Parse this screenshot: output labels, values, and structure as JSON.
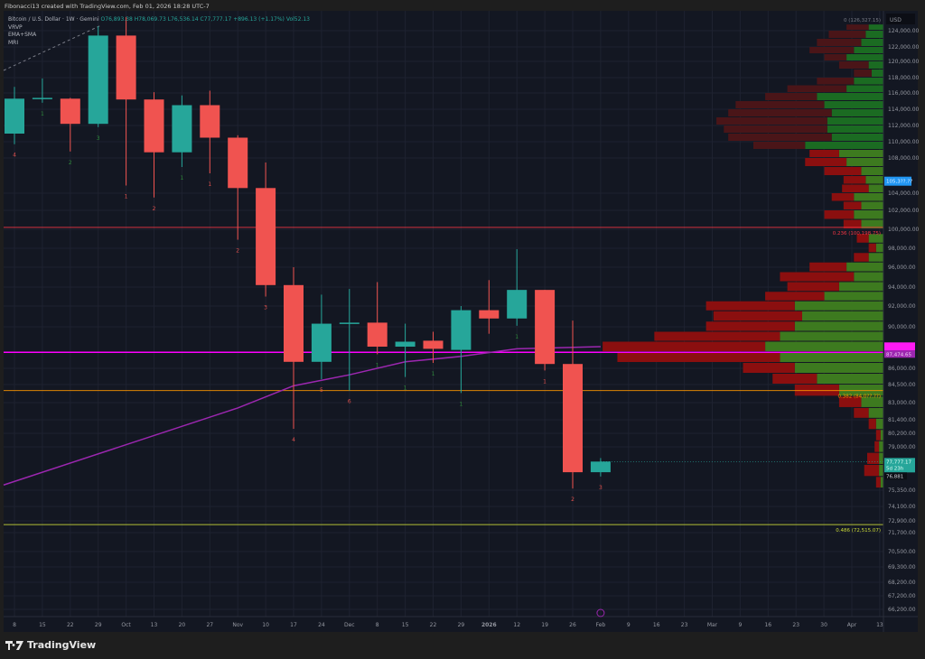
{
  "credit": "Fibonacci13 created with TradingView.com, Feb 01, 2026 18:28 UTC-7",
  "legend": {
    "symbol": "Bitcoin / U.S. Dollar · 1W · Gemini",
    "open": "O76,893.38",
    "high": "H78,069.73",
    "low": "L76,536.14",
    "close": "C77,777.17",
    "change": "+896.13 (+1.17%)",
    "volume": "Vol52.13",
    "indicators": [
      "VRVP",
      "EMA+SMA",
      "MRI"
    ]
  },
  "price_axis": {
    "currency": "USD",
    "labels": [
      "124,000.00",
      "122,000.00",
      "120,000.00",
      "118,000.00",
      "116,000.00",
      "114,000.00",
      "112,000.00",
      "110,000.00",
      "108,000.00",
      "104,000.00",
      "102,000.00",
      "100,000.00",
      "98,000.00",
      "96,000.00",
      "94,000.00",
      "92,000.00",
      "90,000.00",
      "86,000.00",
      "84,500.00",
      "83,000.00",
      "81,400.00",
      "80,200.00",
      "79,000.00",
      "75,350.00",
      "74,100.00",
      "72,900.00",
      "71,700.00",
      "70,500.00",
      "69,300.00",
      "68,200.00",
      "67,200.00",
      "66,200.00"
    ],
    "badges": {
      "blue": "105,3??.??",
      "magenta_top": "",
      "magenta": "87,474.65",
      "current_price": "77,777.17",
      "countdown": "5d 23h",
      "low_mark": "76,881"
    }
  },
  "time_axis": [
    "8",
    "15",
    "22",
    "29",
    "Oct",
    "13",
    "20",
    "27",
    "Nov",
    "10",
    "17",
    "24",
    "Dec",
    "8",
    "15",
    "22",
    "29",
    "2026",
    "12",
    "19",
    "26",
    "Feb",
    "9",
    "16",
    "23",
    "Mar",
    "9",
    "16",
    "23",
    "30",
    "Apr",
    "13"
  ],
  "fib_levels": [
    {
      "label": "0 (126,327.15)",
      "price": 126327.15,
      "color": "#787b86"
    },
    {
      "label": "0.236 (100,198.75)",
      "price": 100198.75,
      "color": "#f23645"
    },
    {
      "label": "0.382 (84,0??.??)",
      "price": 84000,
      "color": "#ff9800"
    },
    {
      "label": "0.486 (72,515.07)",
      "price": 72515.07,
      "color": "#cddc39"
    }
  ],
  "colors": {
    "up": "#26a69a",
    "down": "#f05350",
    "ema": "#9c27b0",
    "poc": "#ff00ff",
    "background": "#131722"
  },
  "chart_data": {
    "type": "candlestick",
    "timeframe": "1W",
    "weeks": [
      "2025-09-08",
      "2025-09-15",
      "2025-09-22",
      "2025-09-29",
      "2025-10-06",
      "2025-10-13",
      "2025-10-20",
      "2025-10-27",
      "2025-11-03",
      "2025-11-10",
      "2025-11-17",
      "2025-11-24",
      "2025-12-01",
      "2025-12-08",
      "2025-12-15",
      "2025-12-22",
      "2025-12-29",
      "2026-01-05",
      "2026-01-12",
      "2026-01-19",
      "2026-01-26",
      "2026-02-02"
    ],
    "ohlc": [
      [
        111000,
        116800,
        109700,
        115300
      ],
      [
        115300,
        117900,
        114800,
        115400
      ],
      [
        115300,
        115400,
        108800,
        112200
      ],
      [
        112200,
        124700,
        111800,
        123400
      ],
      [
        123400,
        126200,
        104900,
        115200
      ],
      [
        115200,
        116100,
        103500,
        108700
      ],
      [
        108700,
        115700,
        107000,
        114500
      ],
      [
        114500,
        116300,
        106300,
        110500
      ],
      [
        110500,
        110800,
        98900,
        104600
      ],
      [
        104600,
        107500,
        93000,
        94200
      ],
      [
        94200,
        96000,
        80600,
        86600
      ],
      [
        86600,
        93200,
        85000,
        90300
      ],
      [
        90300,
        93800,
        84000,
        90400
      ],
      [
        90400,
        94500,
        87300,
        88000
      ],
      [
        88000,
        90300,
        85200,
        88500
      ],
      [
        88600,
        89500,
        86500,
        87800
      ],
      [
        87700,
        92000,
        83800,
        91600
      ],
      [
        91600,
        94700,
        89300,
        90800
      ],
      [
        90800,
        97900,
        90100,
        93700
      ],
      [
        93700,
        93700,
        85800,
        86400
      ],
      [
        86400,
        90600,
        75500,
        76893
      ],
      [
        76893.38,
        78069.73,
        76536.14,
        77777.17
      ]
    ],
    "mri_counts": [
      {
        "v": "4",
        "up": false
      },
      {
        "v": "1",
        "up": true
      },
      {
        "v": "2",
        "up": true
      },
      {
        "v": "3",
        "up": true
      },
      {
        "v": "1",
        "up": false
      },
      {
        "v": "2",
        "up": false
      },
      {
        "v": "1",
        "up": true
      },
      {
        "v": "1",
        "up": false
      },
      {
        "v": "2",
        "up": false
      },
      {
        "v": "3",
        "up": false
      },
      {
        "v": "4",
        "up": false
      },
      {
        "v": "5",
        "up": false
      },
      {
        "v": "6",
        "up": false
      },
      {
        "v": "1",
        "up": true
      },
      {
        "v": "1",
        "up": true
      },
      {
        "v": "1",
        "up": true
      },
      {
        "v": "1",
        "up": true
      },
      {
        "v": "",
        "up": true
      },
      {
        "v": "1",
        "up": true
      },
      {
        "v": "1",
        "up": false
      },
      {
        "v": "2",
        "up": false
      },
      {
        "v": "3",
        "up": false
      }
    ],
    "ema_line": [
      [
        0,
        75800
      ],
      [
        8,
        82500
      ],
      [
        10,
        84400
      ],
      [
        12,
        85400
      ],
      [
        14,
        86600
      ],
      [
        16,
        87100
      ],
      [
        18,
        87800
      ],
      [
        21,
        88000
      ]
    ],
    "poc_price": 87474.65,
    "volume_profile_rows": [
      [
        124500,
        10,
        15
      ],
      [
        123500,
        12,
        25
      ],
      [
        122500,
        15,
        30
      ],
      [
        121500,
        20,
        30
      ],
      [
        120500,
        25,
        15
      ],
      [
        119500,
        10,
        20
      ],
      [
        118500,
        8,
        12
      ],
      [
        117500,
        20,
        25
      ],
      [
        116500,
        25,
        40
      ],
      [
        115500,
        45,
        35
      ],
      [
        114500,
        40,
        60
      ],
      [
        113500,
        35,
        70
      ],
      [
        112500,
        38,
        75
      ],
      [
        111500,
        38,
        70
      ],
      [
        110500,
        35,
        70
      ],
      [
        109500,
        53,
        35
      ],
      [
        108500,
        30,
        20
      ],
      [
        107500,
        25,
        28
      ],
      [
        106500,
        15,
        25
      ],
      [
        105500,
        12,
        15
      ],
      [
        104500,
        10,
        18
      ],
      [
        103500,
        20,
        15
      ],
      [
        102500,
        15,
        12
      ],
      [
        101500,
        20,
        20
      ],
      [
        100500,
        15,
        12
      ],
      [
        99000,
        10,
        8
      ],
      [
        98000,
        5,
        5
      ],
      [
        97000,
        10,
        10
      ],
      [
        96000,
        25,
        25
      ],
      [
        95000,
        20,
        50
      ],
      [
        94000,
        30,
        35
      ],
      [
        93000,
        40,
        40
      ],
      [
        92000,
        60,
        60
      ],
      [
        91000,
        55,
        60
      ],
      [
        90000,
        60,
        60
      ],
      [
        89000,
        70,
        85
      ],
      [
        88000,
        80,
        110
      ],
      [
        87000,
        70,
        110
      ],
      [
        86000,
        60,
        35
      ],
      [
        85000,
        45,
        30
      ],
      [
        84000,
        30,
        30
      ],
      [
        83000,
        15,
        15
      ],
      [
        82000,
        10,
        10
      ],
      [
        81000,
        5,
        5
      ],
      [
        80000,
        2,
        3
      ],
      [
        79000,
        3,
        3
      ],
      [
        78000,
        3,
        8
      ],
      [
        77000,
        3,
        10
      ],
      [
        76000,
        2,
        3
      ]
    ],
    "scale": "log"
  },
  "footer": {
    "brand": "TradingView"
  }
}
